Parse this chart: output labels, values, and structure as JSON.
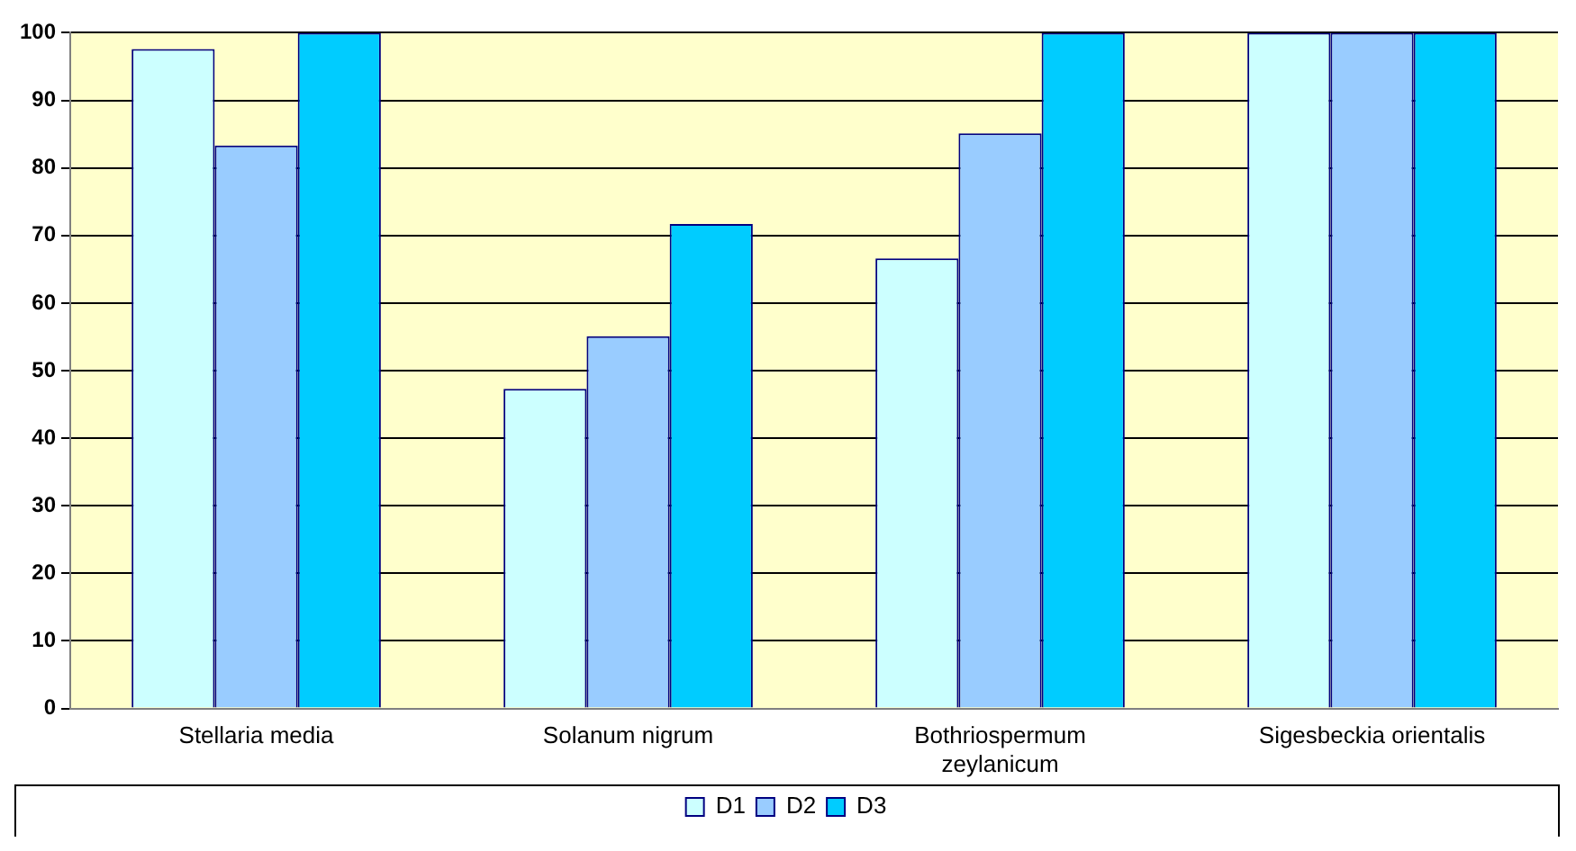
{
  "chart_data": {
    "type": "bar",
    "categories": [
      "Stellaria media",
      "Solanum nigrum",
      "Bothriospermum zeylanicum",
      "Sigesbeckia orientalis"
    ],
    "series": [
      {
        "name": "D1",
        "color": "#ccffff",
        "values": [
          97.6,
          47.3,
          66.6,
          100
        ]
      },
      {
        "name": "D2",
        "color": "#99ccff",
        "values": [
          83.3,
          55.1,
          85.1,
          100
        ]
      },
      {
        "name": "D3",
        "color": "#00ccff",
        "values": [
          100,
          71.7,
          100,
          100
        ]
      }
    ],
    "ylim": [
      0,
      100
    ],
    "yticks": [
      0,
      10,
      20,
      30,
      40,
      50,
      60,
      70,
      80,
      90,
      100
    ],
    "grid": "y",
    "legend": "bottom"
  }
}
